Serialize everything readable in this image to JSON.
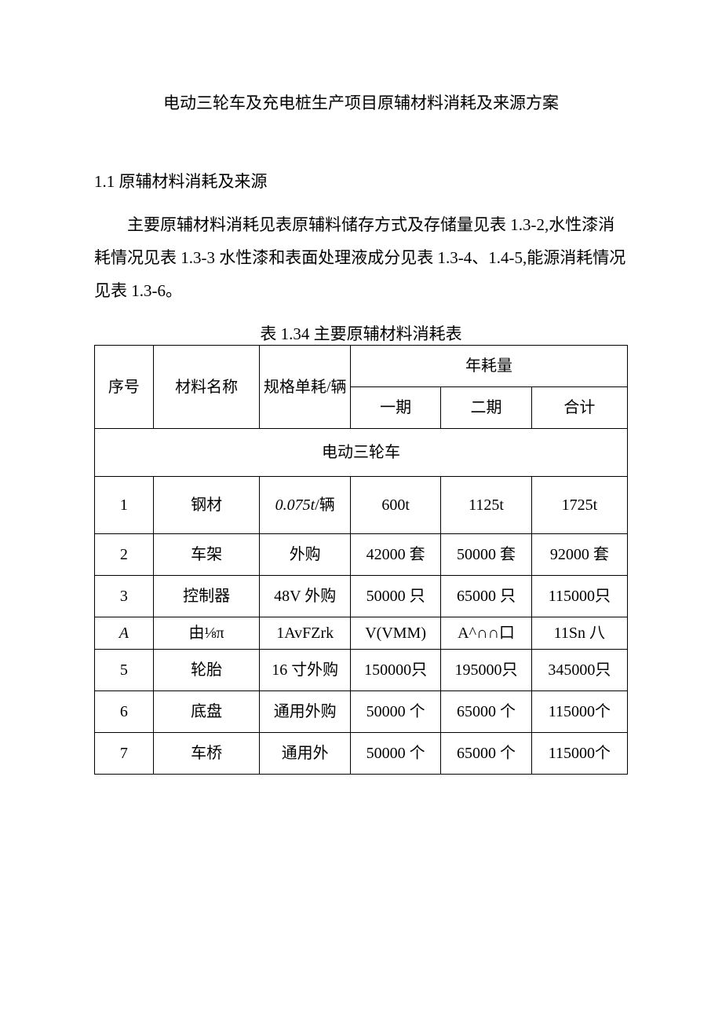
{
  "title": "电动三轮车及充电桩生产项目原辅材料消耗及来源方案",
  "section_heading": "1.1 原辅材料消耗及来源",
  "paragraph": "主要原辅材料消耗见表原辅料储存方式及存储量见表 1.3-2,水性漆消耗情况见表 1.3-3 水性漆和表面处理液成分见表 1.3-4、1.4-5,能源消耗情况见表 1.3-6。",
  "table_caption": "表 1.34 主要原辅材料消耗表",
  "headers": {
    "seq": "序号",
    "name": "材料名称",
    "spec": "规格单耗/辆",
    "annual": "年耗量",
    "phase1": "一期",
    "phase2": "二期",
    "total": "合计"
  },
  "section_label": "电动三轮车",
  "rows": [
    {
      "seq": "1",
      "name": "钢材",
      "spec": "0.075t/辆",
      "p1": "600t",
      "p2": "1125t",
      "total": "1725t"
    },
    {
      "seq": "2",
      "name": "车架",
      "spec": "外购",
      "p1": "42000 套",
      "p2": "50000 套",
      "total": "92000 套"
    },
    {
      "seq": "3",
      "name": "控制器",
      "spec": "48V 外购",
      "p1": "50000 只",
      "p2": "65000 只",
      "total": "115000只"
    },
    {
      "seq": "A",
      "name": "由⅛π",
      "spec": "1AvFZrk",
      "p1": "V(VMM)",
      "p2": "A^∩∩口",
      "total": "11Sn 八"
    },
    {
      "seq": "5",
      "name": "轮胎",
      "spec": "16 寸外购",
      "p1": "150000只",
      "p2": "195000只",
      "total": "345000只"
    },
    {
      "seq": "6",
      "name": "底盘",
      "spec": "通用外购",
      "p1": "50000 个",
      "p2": "65000 个",
      "total": "115000个"
    },
    {
      "seq": "7",
      "name": "车桥",
      "spec": "通用外",
      "p1": "50000 个",
      "p2": "65000 个",
      "total": "115000个"
    }
  ]
}
